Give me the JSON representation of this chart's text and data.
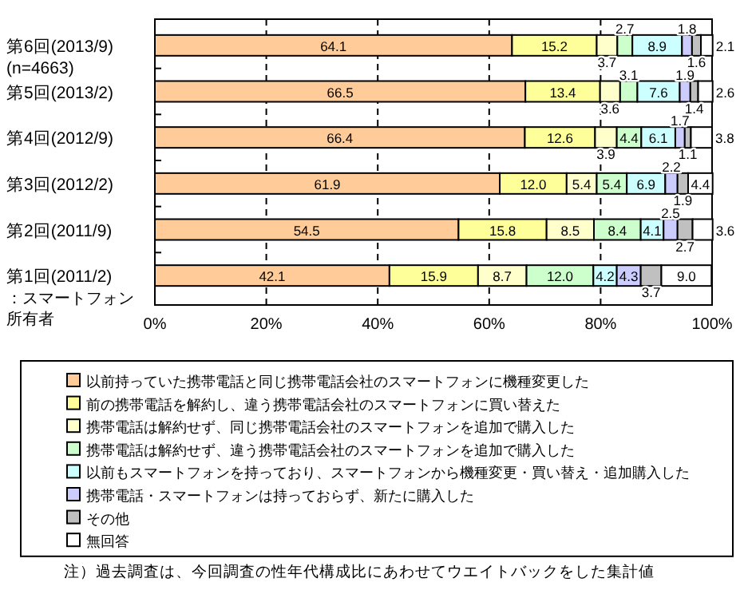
{
  "chart_data": {
    "type": "bar",
    "orientation": "horizontal",
    "stacked": true,
    "grid": "x",
    "legend": "bottom",
    "ylabel": "：スマートフォン所有者",
    "categories": [
      "第6回(2013/9)\n(n=4663)",
      "第5回(2013/2)",
      "第4回(2012/9)",
      "第3回(2012/2)",
      "第2回(2011/9)",
      "第1回(2011/2)"
    ],
    "xlim": [
      0,
      100
    ],
    "xticks": [
      {
        "value": 0,
        "label": "0%"
      },
      {
        "value": 20,
        "label": "20%"
      },
      {
        "value": 40,
        "label": "40%"
      },
      {
        "value": 60,
        "label": "60%"
      },
      {
        "value": 80,
        "label": "80%"
      },
      {
        "value": 100,
        "label": "100%"
      }
    ],
    "series": [
      {
        "name": "以前持っていた携帯電話と同じ携帯電話会社のスマートフォンに機種変更した",
        "color": "#ffcc99",
        "values": [
          64.1,
          66.5,
          66.4,
          61.9,
          54.5,
          42.1
        ],
        "value_labels": [
          "64.1",
          "66.5",
          "66.4",
          "61.9",
          "54.5",
          "42.1"
        ]
      },
      {
        "name": "前の携帯電話を解約し、違う携帯電話会社のスマートフォンに買い替えた",
        "color": "#ffff99",
        "values": [
          15.2,
          13.4,
          12.6,
          12.0,
          15.8,
          15.9
        ],
        "value_labels": [
          "15.2",
          "13.4",
          "12.6",
          "12.0",
          "15.8",
          "15.9"
        ]
      },
      {
        "name": "携帯電話は解約せず、同じ携帯電話会社のスマートフォンを追加で購入した",
        "color": "#ffffcc",
        "values": [
          3.7,
          3.6,
          3.9,
          5.4,
          8.5,
          8.7
        ],
        "value_labels": [
          "3.7",
          "3.6",
          "3.9",
          "5.4",
          "8.5",
          "8.7"
        ]
      },
      {
        "name": "携帯電話は解約せず、違う携帯電話会社のスマートフォンを追加で購入した",
        "color": "#ccffcc",
        "values": [
          2.7,
          3.1,
          4.4,
          5.4,
          8.4,
          12.0
        ],
        "value_labels": [
          "2.7",
          "3.1",
          "4.4",
          "5.4",
          "8.4",
          "12.0"
        ]
      },
      {
        "name": "以前もスマートフォンを持っており、スマートフォンから機種変更・買い替え・追加購入した",
        "color": "#ccffff",
        "values": [
          8.9,
          7.6,
          6.1,
          6.9,
          4.1,
          4.2
        ],
        "value_labels": [
          "8.9",
          "7.6",
          "6.1",
          "6.9",
          "4.1",
          "4.2"
        ]
      },
      {
        "name": "携帯電話・スマートフォンは持っておらず、新たに購入した",
        "color": "#ccccff",
        "values": [
          1.8,
          1.9,
          1.7,
          2.2,
          2.5,
          4.3
        ],
        "value_labels": [
          "1.8",
          "1.9",
          "1.7",
          "2.2",
          "2.5",
          "4.3"
        ]
      },
      {
        "name": "その他",
        "color": "#c0c0c0",
        "values": [
          1.6,
          1.4,
          1.1,
          1.9,
          2.7,
          3.7
        ],
        "value_labels": [
          "1.6",
          "1.4",
          "1.1",
          "1.9",
          "2.7",
          "3.7"
        ]
      },
      {
        "name": "無回答",
        "color": "#ffffff",
        "values": [
          2.1,
          2.6,
          3.8,
          4.4,
          3.6,
          9.0
        ],
        "value_labels": [
          "2.1",
          "2.6",
          "3.8",
          "4.4",
          "3.6",
          "9.0"
        ]
      }
    ],
    "annotations": [
      "注）過去調査は、今回調査の性年代構成比にあわせてウエイトバックをした集計値"
    ]
  }
}
